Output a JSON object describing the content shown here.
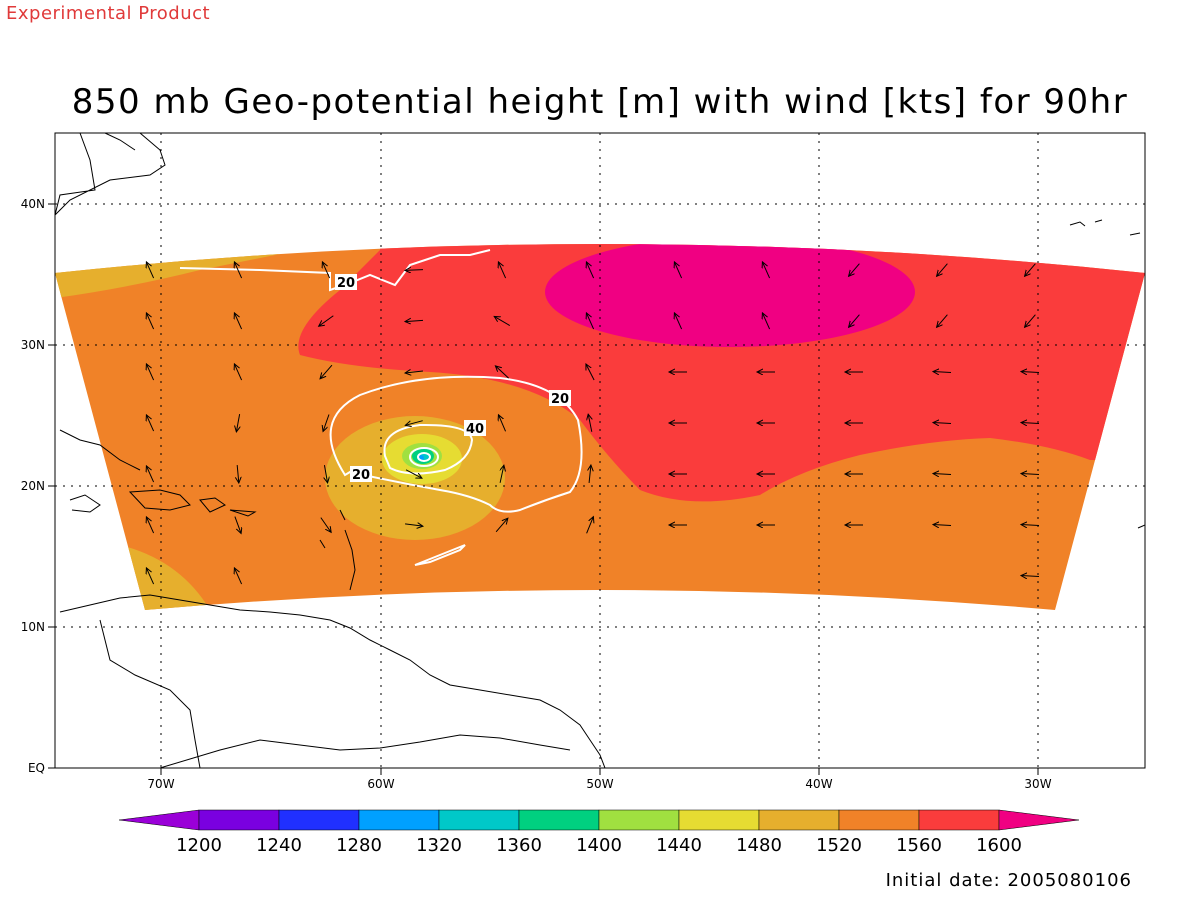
{
  "header": {
    "experimental_label": "Experimental Product",
    "title": "850 mb Geo-potential height [m] with wind [kts] for 90hr"
  },
  "footer": {
    "initial_date": "Initial date: 2005080106"
  },
  "axes": {
    "x_ticks": [
      "70W",
      "60W",
      "50W",
      "40W",
      "30W"
    ],
    "y_ticks": [
      "40N",
      "30N",
      "20N",
      "10N",
      "EQ"
    ]
  },
  "contour_labels": [
    "20",
    "20",
    "20",
    "40"
  ],
  "colorbar": {
    "levels": [
      "1200",
      "1240",
      "1280",
      "1320",
      "1360",
      "1400",
      "1440",
      "1480",
      "1520",
      "1560",
      "1600"
    ],
    "colors": [
      "#9a00d8",
      "#7a00e0",
      "#2030ff",
      "#00a0ff",
      "#00c8c8",
      "#00d080",
      "#a0e040",
      "#e6dc32",
      "#e6af2d",
      "#f08228",
      "#fa3c3c",
      "#f00082"
    ]
  },
  "map_colors": {
    "land_outline": "#000000",
    "wind_contour": "#ffffff",
    "grid": "#000000"
  }
}
